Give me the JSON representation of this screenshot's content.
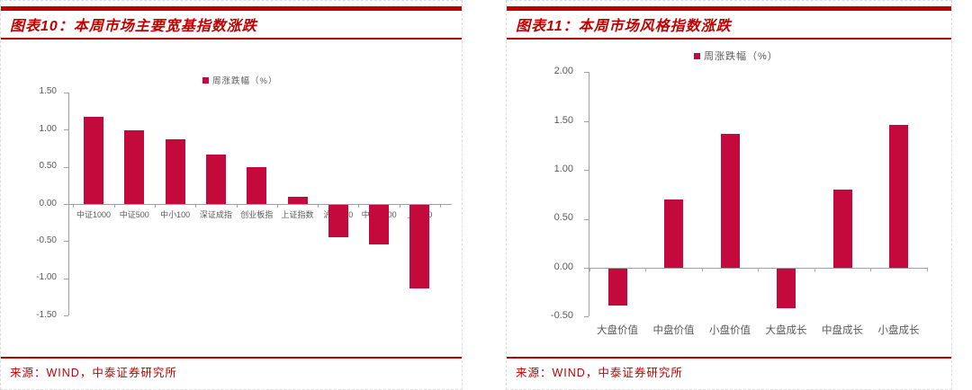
{
  "accent_color": "#c00000",
  "bar_color": "#c40a3c",
  "panels": [
    {
      "title": "图表10：本周市场主要宽基指数涨跌",
      "legend_label": "周涨跌幅（%）",
      "source": "来源：WIND，中泰证券研究所"
    },
    {
      "title": "图表11：本周市场风格指数涨跌",
      "legend_label": "周涨跌幅（%）",
      "source": "来源：WIND，中泰证券研究所"
    }
  ],
  "chart_data": [
    {
      "type": "bar",
      "title": "图表10：本周市场主要宽基指数涨跌",
      "legend": [
        "周涨跌幅（%）"
      ],
      "categories": [
        "中证1000",
        "中证500",
        "中小100",
        "深证成指",
        "创业板指",
        "上证指数",
        "沪深300",
        "中证A100",
        "上证50"
      ],
      "values": [
        1.17,
        0.99,
        0.87,
        0.67,
        0.5,
        0.1,
        -0.44,
        -0.53,
        -1.12
      ],
      "xlabel": "",
      "ylabel": "",
      "ylim": [
        -1.5,
        1.5
      ],
      "ytick_step": 0.5,
      "ytick_labels": [
        "1.50",
        "1.00",
        "0.50",
        "0.00",
        "-0.50",
        "-1.00",
        "-1.50"
      ],
      "grid": false,
      "legend_position": "top-center",
      "bar_color": "#c40a3c",
      "source": "来源：WIND，中泰证券研究所"
    },
    {
      "type": "bar",
      "title": "图表11：本周市场风格指数涨跌",
      "legend": [
        "周涨跌幅（%）"
      ],
      "categories": [
        "大盘价值",
        "中盘价值",
        "小盘价值",
        "大盘成长",
        "中盘成长",
        "小盘成长"
      ],
      "values": [
        -0.38,
        0.7,
        1.37,
        -0.4,
        0.8,
        1.46
      ],
      "xlabel": "",
      "ylabel": "",
      "ylim": [
        -0.5,
        2.0
      ],
      "ytick_step": 0.5,
      "ytick_labels": [
        "2.00",
        "1.50",
        "1.00",
        "0.50",
        "0.00",
        "-0.50"
      ],
      "grid": false,
      "legend_position": "top-center",
      "bar_color": "#c40a3c",
      "source": "来源：WIND，中泰证券研究所"
    }
  ]
}
